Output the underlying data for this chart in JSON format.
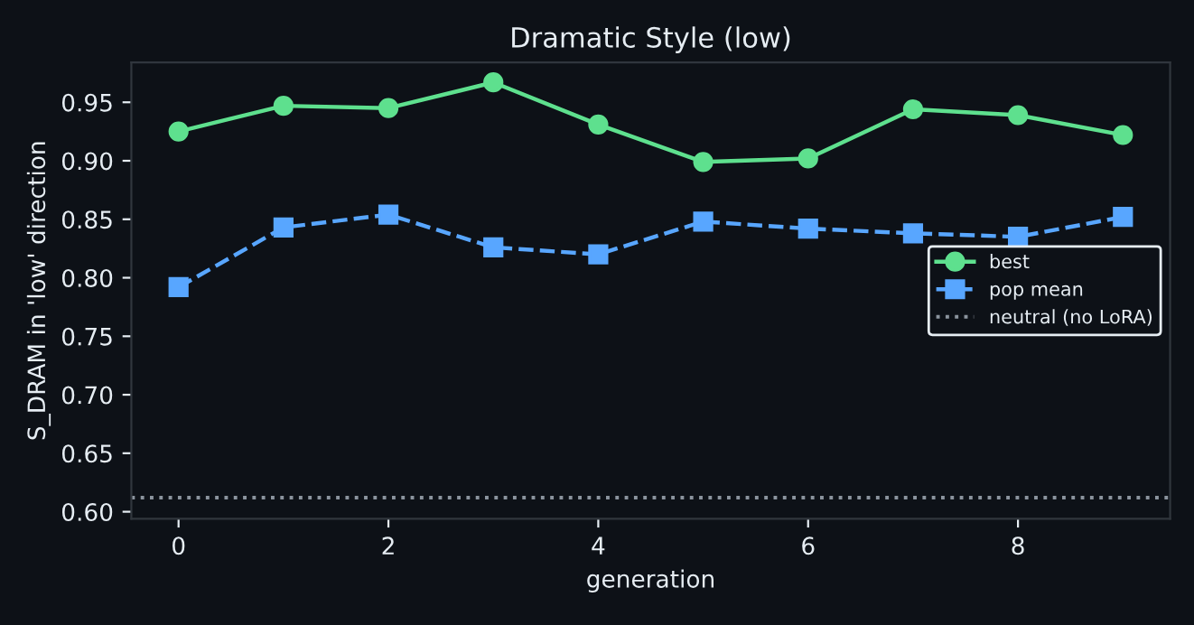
{
  "chart_data": {
    "type": "line",
    "title": "Dramatic Style (low)",
    "xlabel": "generation",
    "ylabel": "S_DRAM in 'low' direction",
    "x": [
      0,
      1,
      2,
      3,
      4,
      5,
      6,
      7,
      8,
      9
    ],
    "series": [
      {
        "name": "best",
        "color": "#5ee08e",
        "marker": "circle",
        "line_style": "solid",
        "values": [
          0.925,
          0.947,
          0.945,
          0.967,
          0.931,
          0.899,
          0.902,
          0.944,
          0.939,
          0.922
        ]
      },
      {
        "name": "pop mean",
        "color": "#58a6ff",
        "marker": "square",
        "line_style": "dashed",
        "values": [
          0.792,
          0.843,
          0.854,
          0.826,
          0.82,
          0.848,
          0.842,
          0.838,
          0.835,
          0.852
        ]
      }
    ],
    "ref_lines": [
      {
        "axis": "y",
        "value": 0.612,
        "label": "neutral (no LoRA)",
        "color": "#8b949e",
        "line_style": "dotted"
      }
    ],
    "xlim": [
      -0.45,
      9.45
    ],
    "ylim": [
      0.594,
      0.984
    ],
    "xticks": [
      0,
      2,
      4,
      6,
      8
    ],
    "yticks": [
      {
        "value": 0.6,
        "label": "0.60"
      },
      {
        "value": 0.65,
        "label": "0.65"
      },
      {
        "value": 0.7,
        "label": "0.70"
      },
      {
        "value": 0.75,
        "label": "0.75"
      },
      {
        "value": 0.8,
        "label": "0.80"
      },
      {
        "value": 0.85,
        "label": "0.85"
      },
      {
        "value": 0.9,
        "label": "0.90"
      },
      {
        "value": 0.95,
        "label": "0.95"
      }
    ],
    "grid": false,
    "legend": "right"
  }
}
